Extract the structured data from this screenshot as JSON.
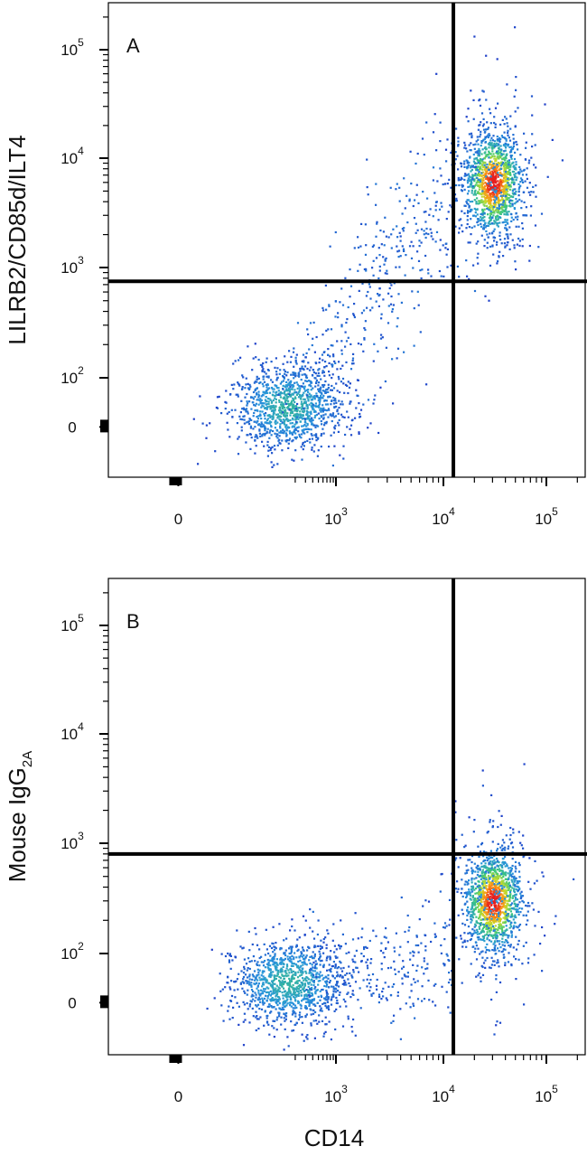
{
  "x_axis_label": "CD14",
  "chart_data": [
    {
      "type": "scatter",
      "panel_label": "A",
      "xlabel": "CD14",
      "ylabel": "LILRB2/CD85d/ILT4",
      "ylabel_parts": {
        "text": "LILRB2/CD85d/ILT4",
        "subscript": ""
      },
      "x_scale": "biexponential",
      "y_scale": "biexponential",
      "x_ticks": [
        {
          "value": 0,
          "base": "0",
          "exp": ""
        },
        {
          "value": 1000,
          "base": "10",
          "exp": "3"
        },
        {
          "value": 10000,
          "base": "10",
          "exp": "4"
        },
        {
          "value": 100000,
          "base": "10",
          "exp": "5"
        }
      ],
      "y_ticks": [
        {
          "value": 0,
          "base": "0",
          "exp": ""
        },
        {
          "value": 100,
          "base": "10",
          "exp": "2"
        },
        {
          "value": 1000,
          "base": "10",
          "exp": "3"
        },
        {
          "value": 10000,
          "base": "10",
          "exp": "4"
        },
        {
          "value": 100000,
          "base": "10",
          "exp": "5"
        }
      ],
      "quadrant_gate": {
        "x": 12500,
        "y": 750
      },
      "populations": [
        {
          "name": "CD14- LILRB2-",
          "center_x": 150,
          "center_y": 10
        },
        {
          "name": "CD14+ LILRB2+",
          "center_x": 30000,
          "center_y": 6000
        },
        {
          "name": "intermediate",
          "center_x": 900,
          "center_y": 1800
        }
      ]
    },
    {
      "type": "scatter",
      "panel_label": "B",
      "xlabel": "CD14",
      "ylabel": "Mouse IgG2A",
      "ylabel_parts": {
        "text": "Mouse IgG",
        "subscript": "2A"
      },
      "x_scale": "biexponential",
      "y_scale": "biexponential",
      "x_ticks": [
        {
          "value": 0,
          "base": "0",
          "exp": ""
        },
        {
          "value": 1000,
          "base": "10",
          "exp": "3"
        },
        {
          "value": 10000,
          "base": "10",
          "exp": "4"
        },
        {
          "value": 100000,
          "base": "10",
          "exp": "5"
        }
      ],
      "y_ticks": [
        {
          "value": 0,
          "base": "0",
          "exp": ""
        },
        {
          "value": 100,
          "base": "10",
          "exp": "2"
        },
        {
          "value": 1000,
          "base": "10",
          "exp": "3"
        },
        {
          "value": 10000,
          "base": "10",
          "exp": "4"
        },
        {
          "value": 100000,
          "base": "10",
          "exp": "5"
        }
      ],
      "quadrant_gate": {
        "x": 12500,
        "y": 800
      },
      "populations": [
        {
          "name": "CD14- isotype-",
          "center_x": 150,
          "center_y": 10
        },
        {
          "name": "CD14+ isotype-",
          "center_x": 30000,
          "center_y": 300
        }
      ]
    }
  ]
}
